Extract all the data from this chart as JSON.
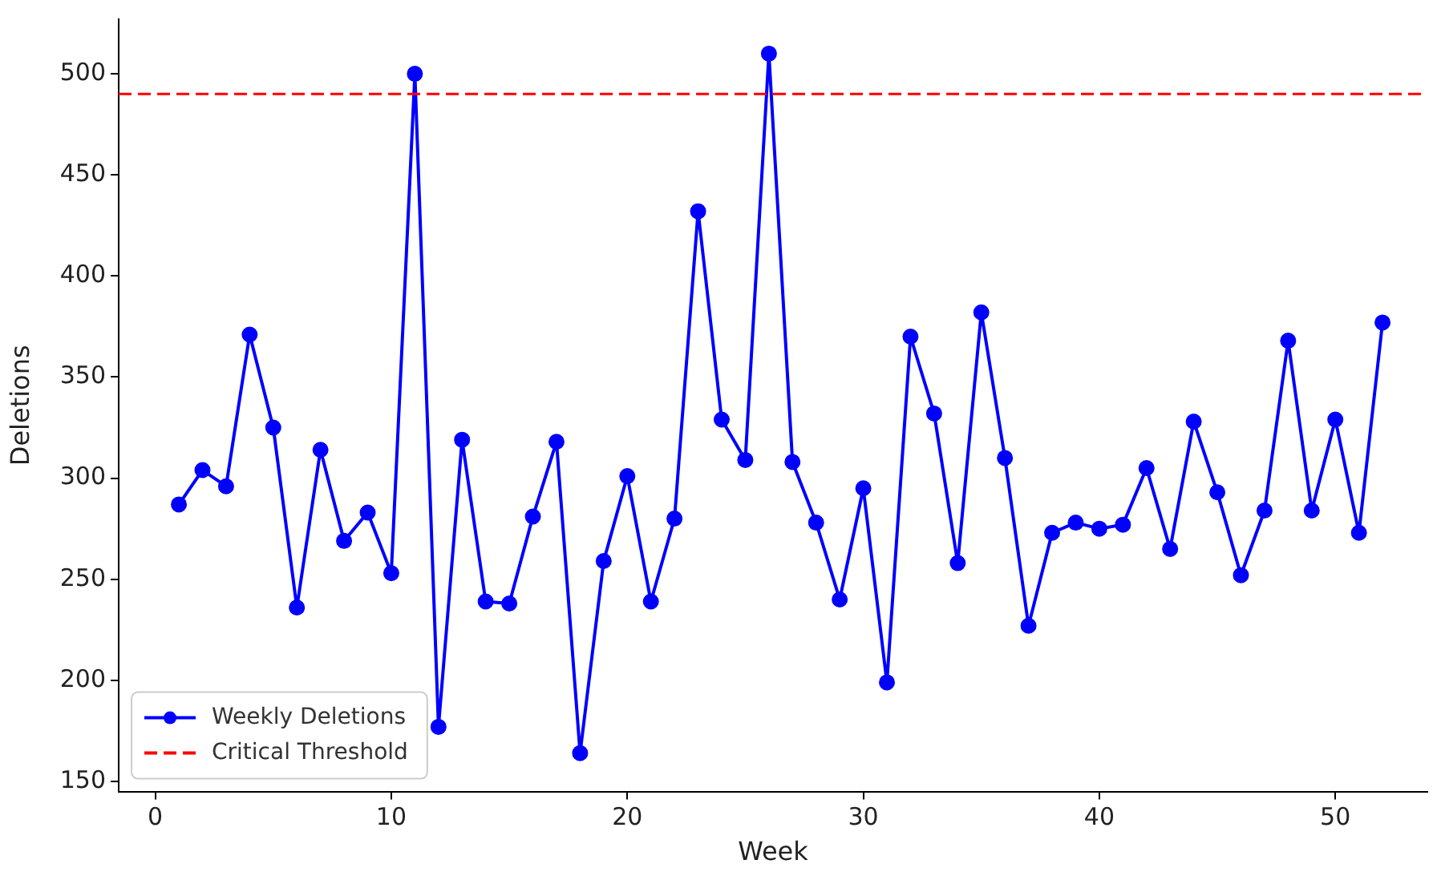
{
  "chart_data": {
    "type": "line",
    "xlabel": "Week",
    "ylabel": "Deletions",
    "x": [
      1,
      2,
      3,
      4,
      5,
      6,
      7,
      8,
      9,
      10,
      11,
      12,
      13,
      14,
      15,
      16,
      17,
      18,
      19,
      20,
      21,
      22,
      23,
      24,
      25,
      26,
      27,
      28,
      29,
      30,
      31,
      32,
      33,
      34,
      35,
      36,
      37,
      38,
      39,
      40,
      41,
      42,
      43,
      44,
      45,
      46,
      47,
      48,
      49,
      50,
      51,
      52
    ],
    "series": [
      {
        "name": "Weekly Deletions",
        "color": "#0000ff",
        "values": [
          287,
          304,
          296,
          371,
          325,
          236,
          314,
          269,
          283,
          253,
          500,
          177,
          319,
          239,
          238,
          281,
          318,
          164,
          259,
          301,
          239,
          280,
          432,
          329,
          309,
          510,
          308,
          278,
          240,
          295,
          199,
          370,
          332,
          258,
          382,
          310,
          227,
          273,
          278,
          275,
          277,
          305,
          265,
          328,
          293,
          252,
          284,
          368,
          284,
          329,
          273,
          377
        ]
      }
    ],
    "ref_lines": [
      {
        "axis": "y",
        "value": 490,
        "label": "Critical Threshold",
        "color": "#ff0000",
        "line_style": "dashed"
      }
    ],
    "xlim": [
      -1.55,
      53.9
    ],
    "xticks": [
      0,
      10,
      20,
      30,
      40,
      50
    ],
    "ylim": [
      145,
      527
    ],
    "yticks": [
      150,
      200,
      250,
      300,
      350,
      400,
      450,
      500
    ],
    "grid": false,
    "legend": "bottom left",
    "marker": "circle",
    "line_style": "solid"
  }
}
